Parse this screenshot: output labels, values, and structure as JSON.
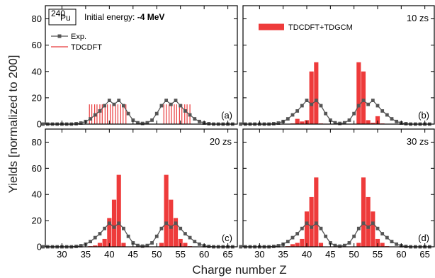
{
  "chart_data": [
    {
      "type": "bar",
      "panel": "(a)",
      "annotation": "Initial energy:",
      "annotation_value": "-4 MeV",
      "nucleus_mass": "240",
      "nucleus_symbol": "Pu",
      "legend": [
        "Exp.",
        "TDCDFT"
      ],
      "series": [
        {
          "name": "Exp.",
          "style": "line-square",
          "color": "#555555",
          "x": [
            26,
            27,
            28,
            29,
            30,
            31,
            32,
            33,
            34,
            35,
            36,
            37,
            38,
            39,
            40,
            41,
            42,
            43,
            44,
            45,
            46,
            47,
            48,
            49,
            50,
            51,
            52,
            53,
            54,
            55,
            56,
            57,
            58,
            59,
            60,
            61,
            62,
            63,
            64,
            65,
            66
          ],
          "y": [
            0,
            0,
            0,
            0,
            0,
            0,
            0,
            0.3,
            0.8,
            2,
            4,
            7,
            10,
            14,
            18,
            15,
            18,
            14,
            8,
            3,
            1,
            0.5,
            1,
            3,
            8,
            14,
            18,
            15,
            18,
            14,
            10,
            7,
            4,
            2,
            0.8,
            0.3,
            0,
            0,
            0,
            0,
            0
          ]
        },
        {
          "name": "TDCDFT",
          "style": "vlines",
          "color": "#e8393b",
          "x": [
            35.8,
            36.3,
            36.9,
            37.4,
            38.0,
            38.5,
            39.1,
            39.6,
            40.2,
            40.7,
            41.3,
            41.8,
            42.4,
            42.9,
            43.5,
            51.5,
            52.0,
            52.6,
            53.1,
            53.7,
            54.2,
            54.8,
            55.3,
            55.9,
            56.4,
            57.0
          ],
          "y": [
            15,
            15,
            15,
            15,
            15,
            15,
            15,
            15,
            15,
            15,
            15,
            15,
            15,
            15,
            15,
            15,
            15,
            15,
            15,
            15,
            15,
            15,
            15,
            15,
            15,
            15
          ]
        }
      ]
    },
    {
      "type": "bar",
      "panel": "(b)",
      "time": "10 zs",
      "legend": [
        "TDCDFT+TDGCM"
      ],
      "series": [
        {
          "name": "TDCDFT+TDGCM",
          "style": "bars",
          "color": "#ee3b3b",
          "x": [
            37,
            38,
            39,
            40,
            41,
            42,
            43,
            44,
            50,
            51,
            52,
            53,
            54,
            55,
            56
          ],
          "y": [
            0.5,
            4,
            2,
            3,
            40,
            47,
            0.5,
            0.3,
            0.3,
            47,
            40,
            3,
            1,
            6,
            0.5
          ]
        },
        {
          "name": "Exp.",
          "style": "line-square",
          "color": "#555555",
          "x": [
            26,
            27,
            28,
            29,
            30,
            31,
            32,
            33,
            34,
            35,
            36,
            37,
            38,
            39,
            40,
            41,
            42,
            43,
            44,
            45,
            46,
            47,
            48,
            49,
            50,
            51,
            52,
            53,
            54,
            55,
            56,
            57,
            58,
            59,
            60,
            61,
            62,
            63,
            64,
            65,
            66
          ],
          "y": [
            0,
            0,
            0,
            0,
            0,
            0,
            0,
            0.3,
            0.8,
            2,
            4,
            7,
            10,
            14,
            18,
            15,
            18,
            14,
            8,
            3,
            1,
            0.5,
            1,
            3,
            8,
            14,
            18,
            15,
            18,
            14,
            10,
            7,
            4,
            2,
            0.8,
            0.3,
            0,
            0,
            0,
            0,
            0
          ]
        }
      ]
    },
    {
      "type": "bar",
      "panel": "(c)",
      "time": "20 zs",
      "series": [
        {
          "name": "TDCDFT+TDGCM",
          "style": "bars",
          "color": "#ee3b3b",
          "x": [
            36,
            37,
            38,
            39,
            40,
            41,
            42,
            43,
            51,
            52,
            53,
            54,
            55,
            56,
            57
          ],
          "y": [
            0.5,
            1,
            3,
            6,
            22,
            36,
            55,
            3,
            3,
            55,
            36,
            22,
            6,
            3,
            0.5
          ]
        },
        {
          "name": "Exp.",
          "style": "line-square",
          "color": "#555555",
          "x": [
            26,
            27,
            28,
            29,
            30,
            31,
            32,
            33,
            34,
            35,
            36,
            37,
            38,
            39,
            40,
            41,
            42,
            43,
            44,
            45,
            46,
            47,
            48,
            49,
            50,
            51,
            52,
            53,
            54,
            55,
            56,
            57,
            58,
            59,
            60,
            61,
            62,
            63,
            64,
            65,
            66
          ],
          "y": [
            0,
            0,
            0,
            0,
            0,
            0,
            0,
            0.3,
            0.8,
            2,
            4,
            7,
            10,
            14,
            18,
            15,
            18,
            14,
            8,
            3,
            1,
            0.5,
            1,
            3,
            8,
            14,
            18,
            15,
            18,
            14,
            10,
            7,
            4,
            2,
            0.8,
            0.3,
            0,
            0,
            0,
            0,
            0
          ]
        }
      ]
    },
    {
      "type": "bar",
      "panel": "(d)",
      "time": "30 zs",
      "series": [
        {
          "name": "TDCDFT+TDGCM",
          "style": "bars",
          "color": "#ee3b3b",
          "x": [
            36,
            37,
            38,
            39,
            40,
            41,
            42,
            43,
            51,
            52,
            53,
            54,
            55,
            56,
            57
          ],
          "y": [
            0.5,
            2,
            3,
            6,
            27,
            38,
            53,
            3,
            3,
            53,
            38,
            27,
            6,
            3,
            0.5
          ]
        },
        {
          "name": "Exp.",
          "style": "line-square",
          "color": "#555555",
          "x": [
            26,
            27,
            28,
            29,
            30,
            31,
            32,
            33,
            34,
            35,
            36,
            37,
            38,
            39,
            40,
            41,
            42,
            43,
            44,
            45,
            46,
            47,
            48,
            49,
            50,
            51,
            52,
            53,
            54,
            55,
            56,
            57,
            58,
            59,
            60,
            61,
            62,
            63,
            64,
            65,
            66
          ],
          "y": [
            0,
            0,
            0,
            0,
            0,
            0,
            0,
            0.3,
            0.8,
            2,
            4,
            7,
            10,
            14,
            18,
            15,
            18,
            14,
            8,
            3,
            1,
            0.5,
            1,
            3,
            8,
            14,
            18,
            15,
            18,
            14,
            10,
            7,
            4,
            2,
            0.8,
            0.3,
            0,
            0,
            0,
            0,
            0
          ]
        }
      ]
    }
  ],
  "axes": {
    "xlabel": "Charge number Z",
    "ylabel": "Yields [normalized to 200]",
    "xlim": [
      26.5,
      67
    ],
    "ylim": [
      0,
      90
    ],
    "xticks": [
      30,
      35,
      40,
      45,
      50,
      55,
      60,
      65
    ],
    "yticks": [
      0,
      20,
      40,
      60,
      80
    ],
    "grid": false
  },
  "colors": {
    "exp": "#555555",
    "theory": "#ee3b3b",
    "theory_lines": "#e8393b"
  }
}
